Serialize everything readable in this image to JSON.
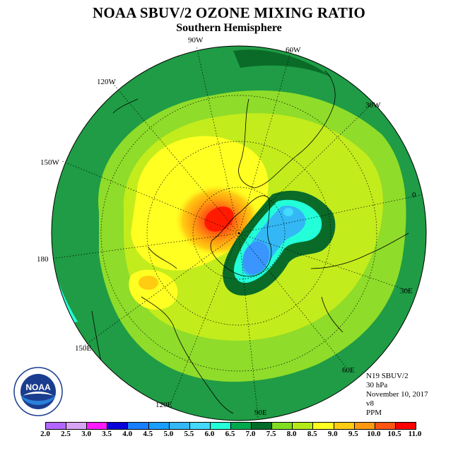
{
  "header": {
    "title": "NOAA SBUV/2 OZONE MIXING RATIO",
    "subtitle": "Southern Hemisphere"
  },
  "longitude_labels": [
    "90W",
    "60W",
    "30W",
    "0",
    "30E",
    "60E",
    "90E",
    "120E",
    "150E",
    "180",
    "150W",
    "120W"
  ],
  "info": {
    "instrument": "N19 SBUV/2",
    "level": "30 hPa",
    "date": "November 10, 2017",
    "version": "v8",
    "units": "PPM"
  },
  "logo": {
    "text": "NOAA",
    "icon": "noaa-logo"
  },
  "colorbar": {
    "ticks": [
      "2.0",
      "2.5",
      "3.0",
      "3.5",
      "4.0",
      "4.5",
      "5.0",
      "5.5",
      "6.0",
      "6.5",
      "7.0",
      "7.5",
      "8.0",
      "8.5",
      "9.0",
      "9.5",
      "10.0",
      "10.5",
      "11.0"
    ],
    "colors": [
      "#b366ff",
      "#d9a3f5",
      "#ff1aff",
      "#0a00d9",
      "#1a7fff",
      "#1a9fff",
      "#33b8f5",
      "#44d9ff",
      "#22ffd9",
      "#00a84d",
      "#006b2a",
      "#80dd22",
      "#b3ea18",
      "#ffff22",
      "#ffcc11",
      "#ff9911",
      "#ff5511",
      "#ff0000",
      "#8b4a2a"
    ]
  },
  "colors": {
    "outer_band": "#1e9e42",
    "mid_band": "#8fdc2a",
    "inner_band": "#c3ec1c",
    "high_core": "#ff1a00",
    "low_core": "#3a95ff",
    "background": "#ffffff"
  }
}
